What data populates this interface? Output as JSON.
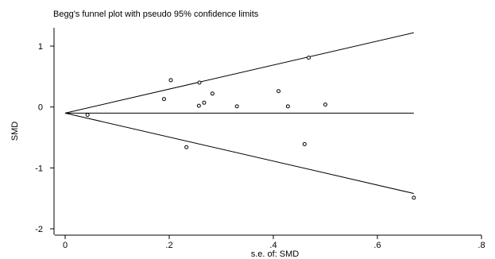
{
  "chart_data": {
    "type": "scatter",
    "title": "Begg's funnel plot with pseudo 95% confidence limits",
    "xlabel": "s.e. of: SMD",
    "ylabel": "SMD",
    "xlim": [
      -0.02,
      0.8
    ],
    "ylim": [
      -2.1,
      1.3
    ],
    "x_ticks": [
      0,
      0.2,
      0.4,
      0.6,
      0.8
    ],
    "x_tick_labels": [
      "0",
      ".2",
      ".4",
      ".6",
      ".8"
    ],
    "y_ticks": [
      1,
      0,
      -1,
      -2
    ],
    "y_tick_labels": [
      "1",
      "0",
      "-1",
      "-2"
    ],
    "pooled_estimate": -0.1,
    "confidence_limits": {
      "se_max": 0.67,
      "upper_at_se_max": 1.22,
      "lower_at_se_max": -1.42
    },
    "grid": false,
    "points": [
      {
        "x": 0.043,
        "y": -0.13
      },
      {
        "x": 0.19,
        "y": 0.13
      },
      {
        "x": 0.203,
        "y": 0.44
      },
      {
        "x": 0.233,
        "y": -0.66
      },
      {
        "x": 0.257,
        "y": 0.02
      },
      {
        "x": 0.258,
        "y": 0.4
      },
      {
        "x": 0.267,
        "y": 0.07
      },
      {
        "x": 0.283,
        "y": 0.22
      },
      {
        "x": 0.33,
        "y": 0.01
      },
      {
        "x": 0.41,
        "y": 0.26
      },
      {
        "x": 0.428,
        "y": 0.01
      },
      {
        "x": 0.46,
        "y": -0.61
      },
      {
        "x": 0.468,
        "y": 0.81
      },
      {
        "x": 0.5,
        "y": 0.04
      },
      {
        "x": 0.67,
        "y": -1.49
      }
    ]
  }
}
